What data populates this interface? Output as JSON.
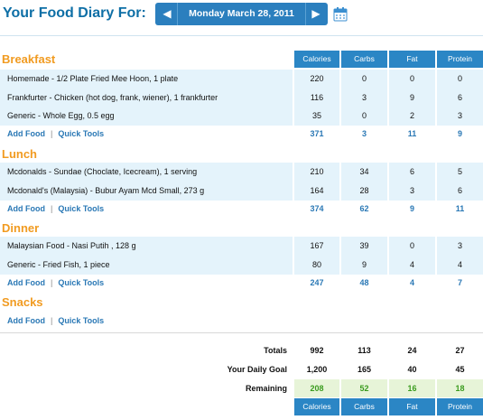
{
  "header": {
    "title": "Your Food Diary For:",
    "date": "Monday March 28, 2011",
    "prev_icon": "left-triangle-icon",
    "next_icon": "right-triangle-icon",
    "calendar_icon": "calendar-icon"
  },
  "columns": [
    "Calories",
    "Carbs",
    "Fat",
    "Protein"
  ],
  "links": {
    "add_food": "Add Food",
    "quick_tools": "Quick Tools",
    "separator": "|"
  },
  "meals": [
    {
      "name": "Breakfast",
      "foods": [
        {
          "name": "Homemade - 1/2 Plate Fried Mee Hoon, 1 plate",
          "calories": "220",
          "carbs": "0",
          "fat": "0",
          "protein": "0"
        },
        {
          "name": "Frankfurter - Chicken (hot dog, frank, wiener), 1 frankfurter",
          "calories": "116",
          "carbs": "3",
          "fat": "9",
          "protein": "6"
        },
        {
          "name": "Generic - Whole Egg, 0.5 egg",
          "calories": "35",
          "carbs": "0",
          "fat": "2",
          "protein": "3"
        }
      ],
      "totals": {
        "calories": "371",
        "carbs": "3",
        "fat": "11",
        "protein": "9"
      }
    },
    {
      "name": "Lunch",
      "foods": [
        {
          "name": "Mcdonalds - Sundae (Choclate, Icecream), 1 serving",
          "calories": "210",
          "carbs": "34",
          "fat": "6",
          "protein": "5"
        },
        {
          "name": "Mcdonald's (Malaysia) - Bubur Ayam Mcd Small, 273 g",
          "calories": "164",
          "carbs": "28",
          "fat": "3",
          "protein": "6"
        }
      ],
      "totals": {
        "calories": "374",
        "carbs": "62",
        "fat": "9",
        "protein": "11"
      }
    },
    {
      "name": "Dinner",
      "foods": [
        {
          "name": "Malaysian Food - Nasi Putih , 128 g",
          "calories": "167",
          "carbs": "39",
          "fat": "0",
          "protein": "3"
        },
        {
          "name": "Generic - Fried Fish, 1 piece",
          "calories": "80",
          "carbs": "9",
          "fat": "4",
          "protein": "4"
        }
      ],
      "totals": {
        "calories": "247",
        "carbs": "48",
        "fat": "4",
        "protein": "7"
      }
    },
    {
      "name": "Snacks",
      "foods": [],
      "totals": {
        "calories": "",
        "carbs": "",
        "fat": "",
        "protein": ""
      }
    }
  ],
  "summary": {
    "totals": {
      "label": "Totals",
      "calories": "992",
      "carbs": "113",
      "fat": "24",
      "protein": "27"
    },
    "goal": {
      "label": "Your Daily Goal",
      "calories": "1,200",
      "carbs": "165",
      "fat": "40",
      "protein": "45"
    },
    "remaining": {
      "label": "Remaining",
      "calories": "208",
      "carbs": "52",
      "fat": "16",
      "protein": "18"
    }
  },
  "colors": {
    "accent": "#2b86c5",
    "meal_title": "#f19b21",
    "row_bg": "#e4f3fb",
    "remaining": "#3a9b1e"
  }
}
